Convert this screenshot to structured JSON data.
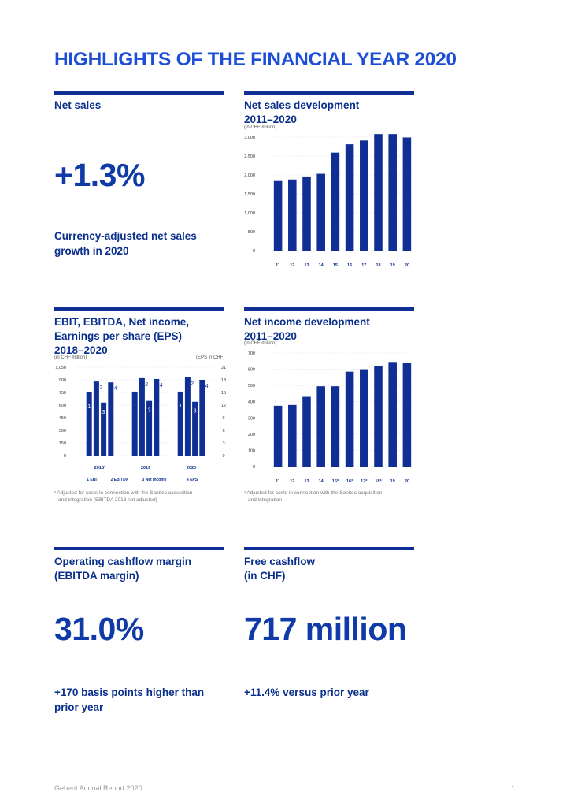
{
  "page_title": "HIGHLIGHTS OF THE FINANCIAL YEAR 2020",
  "net_sales": {
    "heading": "Net sales",
    "value": "+1.3%",
    "caption_line1": "Currency-adjusted net sales",
    "caption_line2": "growth in 2020"
  },
  "net_sales_dev": {
    "heading_line1": "Net sales development",
    "heading_line2": "2011–2020",
    "unit": "(in CHF million)"
  },
  "ebit_block": {
    "heading_line1": "EBIT, EBITDA, Net income,",
    "heading_line2": "Earnings per share (EPS)",
    "heading_line3": "2018–2020",
    "unit_left": "(in CHF million)",
    "unit_right": "(EPS in CHF)",
    "footnote_line1": "Adjusted for costs in connection with the Sanitec acquisition",
    "footnote_line2": "and integration (EBITDA 2018 not adjusted)",
    "footnote_mark": "*"
  },
  "net_income_dev": {
    "heading_line1": "Net income development",
    "heading_line2": "2011–2020",
    "unit": "(in CHF million)",
    "footnote_line1": "Adjusted for costs in connection with the Sanitec acquisition",
    "footnote_line2": "and integration",
    "footnote_mark": "*"
  },
  "ebitda_margin": {
    "heading_line1": "Operating cashflow margin",
    "heading_line2": "(EBITDA margin)",
    "value": "31.0%",
    "caption_line1": "+170 basis points higher than",
    "caption_line2": "prior year"
  },
  "free_cashflow": {
    "heading_line1": "Free cashflow",
    "heading_line2": "(in CHF)",
    "value": "717 million",
    "caption_line1": "+11.4% versus prior year"
  },
  "footer": {
    "report": "Geberit Annual Report 2020",
    "page": "1"
  },
  "chart_data": [
    {
      "type": "bar",
      "categories": [
        "11",
        "12",
        "13",
        "14",
        "15",
        "16",
        "17",
        "18",
        "19",
        "20"
      ],
      "values": [
        1840,
        1880,
        1960,
        2030,
        2590,
        2810,
        2910,
        3080,
        3080,
        2990
      ],
      "title": "Net sales development 2011–2020",
      "ylabel": "(in CHF million)",
      "ylim": [
        0,
        3000
      ],
      "yticks": [
        0,
        500,
        1000,
        1500,
        2000,
        2500,
        3000
      ],
      "ytick_labels": [
        "0",
        "500",
        "1,000",
        "1,500",
        "2,000",
        "2,500",
        "3,000"
      ],
      "color": "#0f2f95",
      "grid": true
    },
    {
      "type": "bar",
      "categories": [
        "2018*",
        "2019",
        "2020"
      ],
      "series": [
        {
          "name": "EBIT",
          "number": "1",
          "values": [
            750,
            760,
            760
          ]
        },
        {
          "name": "EBITDA",
          "number": "2",
          "values": [
            880,
            920,
            930
          ]
        },
        {
          "name": "Net income",
          "number": "3",
          "values": [
            630,
            650,
            640
          ]
        },
        {
          "name": "EPS",
          "number": "4",
          "values": [
            17.4,
            18.2,
            18.0
          ]
        }
      ],
      "legend_labels": [
        "1 EBIT",
        "2 EBITDA",
        "3 Net income",
        "4 EPS"
      ],
      "ylabel_left": "(in CHF million)",
      "ylabel_right": "(EPS in CHF)",
      "ylim_left": [
        0,
        1050
      ],
      "ylim_right": [
        0,
        21
      ],
      "yticks_left_labels": [
        "0",
        "150",
        "300",
        "450",
        "600",
        "750",
        "900",
        "1,050"
      ],
      "yticks_right_labels": [
        "0",
        "3",
        "6",
        "9",
        "12",
        "15",
        "18",
        "21"
      ],
      "legend_position": "bottom",
      "color": "#0f2f95",
      "grid": true
    },
    {
      "type": "bar",
      "categories": [
        "11",
        "12",
        "13",
        "14",
        "15*",
        "16*",
        "17*",
        "18*",
        "19",
        "20"
      ],
      "values": [
        375,
        380,
        430,
        495,
        495,
        585,
        600,
        620,
        645,
        640
      ],
      "title": "Net income development 2011–2020",
      "ylabel": "(in CHF million)",
      "ylim": [
        0,
        700
      ],
      "yticks": [
        0,
        100,
        200,
        300,
        400,
        500,
        600,
        700
      ],
      "ytick_labels": [
        "0",
        "100",
        "200",
        "300",
        "400",
        "500",
        "600",
        "700"
      ],
      "color": "#0f2f95",
      "grid": true
    }
  ]
}
